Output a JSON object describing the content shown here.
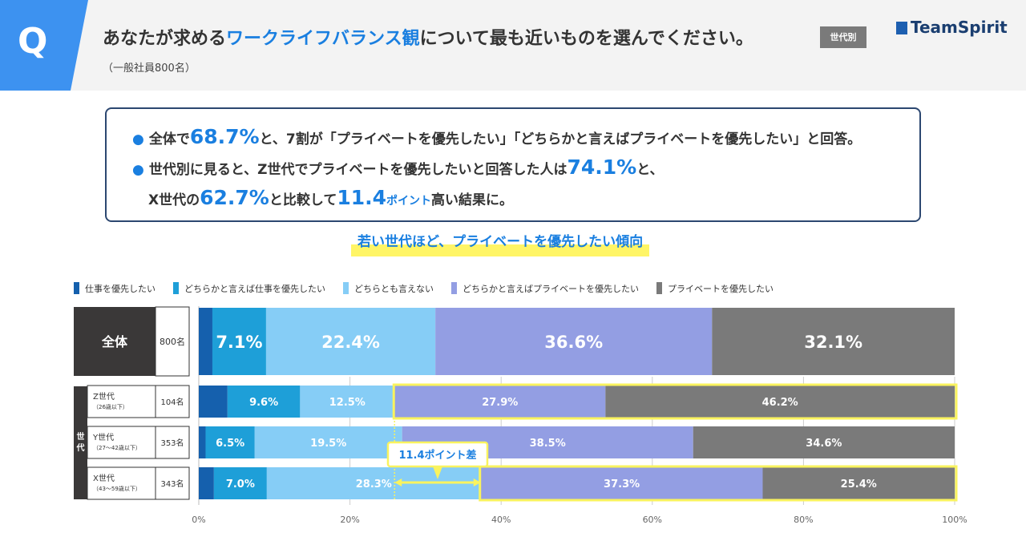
{
  "header": {
    "q_label": "Q",
    "question_pre": "あなたが求める",
    "question_highlight": "ワークライフバランス観",
    "question_post": "について最も近いものを選んでください。",
    "tag": "世代別",
    "subtitle": "（一般社員800名）",
    "logo": "TeamSpirit"
  },
  "summary": {
    "line1_pre": "全体で",
    "line1_num": "68.7%",
    "line1_post": "と、7割が「プライベートを優先したい」「どちらかと言えばプライベートを優先したい」と回答。",
    "line2_pre": "世代別に見ると、Z世代でプライベートを優先したいと回答した人は",
    "line2_num": "74.1%",
    "line2_post": "と、",
    "line3_pre": "X世代の",
    "line3_num1": "62.7%",
    "line3_mid": "と比較して",
    "line3_num2": "11.4",
    "line3_small": "ポイント",
    "line3_post": "高い結果に。"
  },
  "headline": "若い世代ほど、プライベートを優先したい傾向",
  "colors": {
    "c1": "#1560ad",
    "c2": "#1e9fd8",
    "c3": "#86cdf6",
    "c4": "#939ee3",
    "c5": "#7a7a7a",
    "label_dark": "#3a3838",
    "highlight": "#f9f35e"
  },
  "generation_side_label": "世代",
  "callout": "11.4ポイント差",
  "chart_data": {
    "type": "bar",
    "orientation": "horizontal",
    "stacked": true,
    "xlim": [
      0,
      100
    ],
    "x_ticks": [
      "0%",
      "20%",
      "40%",
      "60%",
      "80%",
      "100%"
    ],
    "series_names": [
      "仕事を優先したい",
      "どちらかと言えば仕事を優先したい",
      "どちらとも言えない",
      "どちらかと言えばプライベートを優先したい",
      "プライベートを優先したい"
    ],
    "rows": [
      {
        "label": "全体",
        "sub": "",
        "n": "800名",
        "values": [
          1.8,
          7.1,
          22.4,
          36.6,
          32.1
        ],
        "labels": [
          "",
          "7.1%",
          "22.4%",
          "36.6%",
          "32.1%"
        ]
      },
      {
        "label": "Z世代",
        "sub": "（26歳以下）",
        "n": "104名",
        "values": [
          3.8,
          9.6,
          12.5,
          27.9,
          46.2
        ],
        "labels": [
          "",
          "9.6%",
          "12.5%",
          "27.9%",
          "46.2%"
        ]
      },
      {
        "label": "Y世代",
        "sub": "（27～42歳以下）",
        "n": "353名",
        "values": [
          0.9,
          6.5,
          19.5,
          38.5,
          34.6
        ],
        "labels": [
          "",
          "6.5%",
          "19.5%",
          "38.5%",
          "34.6%"
        ]
      },
      {
        "label": "X世代",
        "sub": "（43～59歳以下）",
        "n": "343名",
        "values": [
          2.0,
          7.0,
          28.3,
          37.3,
          25.4
        ],
        "labels": [
          "",
          "7.0%",
          "28.3%",
          "37.3%",
          "25.4%"
        ]
      }
    ]
  }
}
